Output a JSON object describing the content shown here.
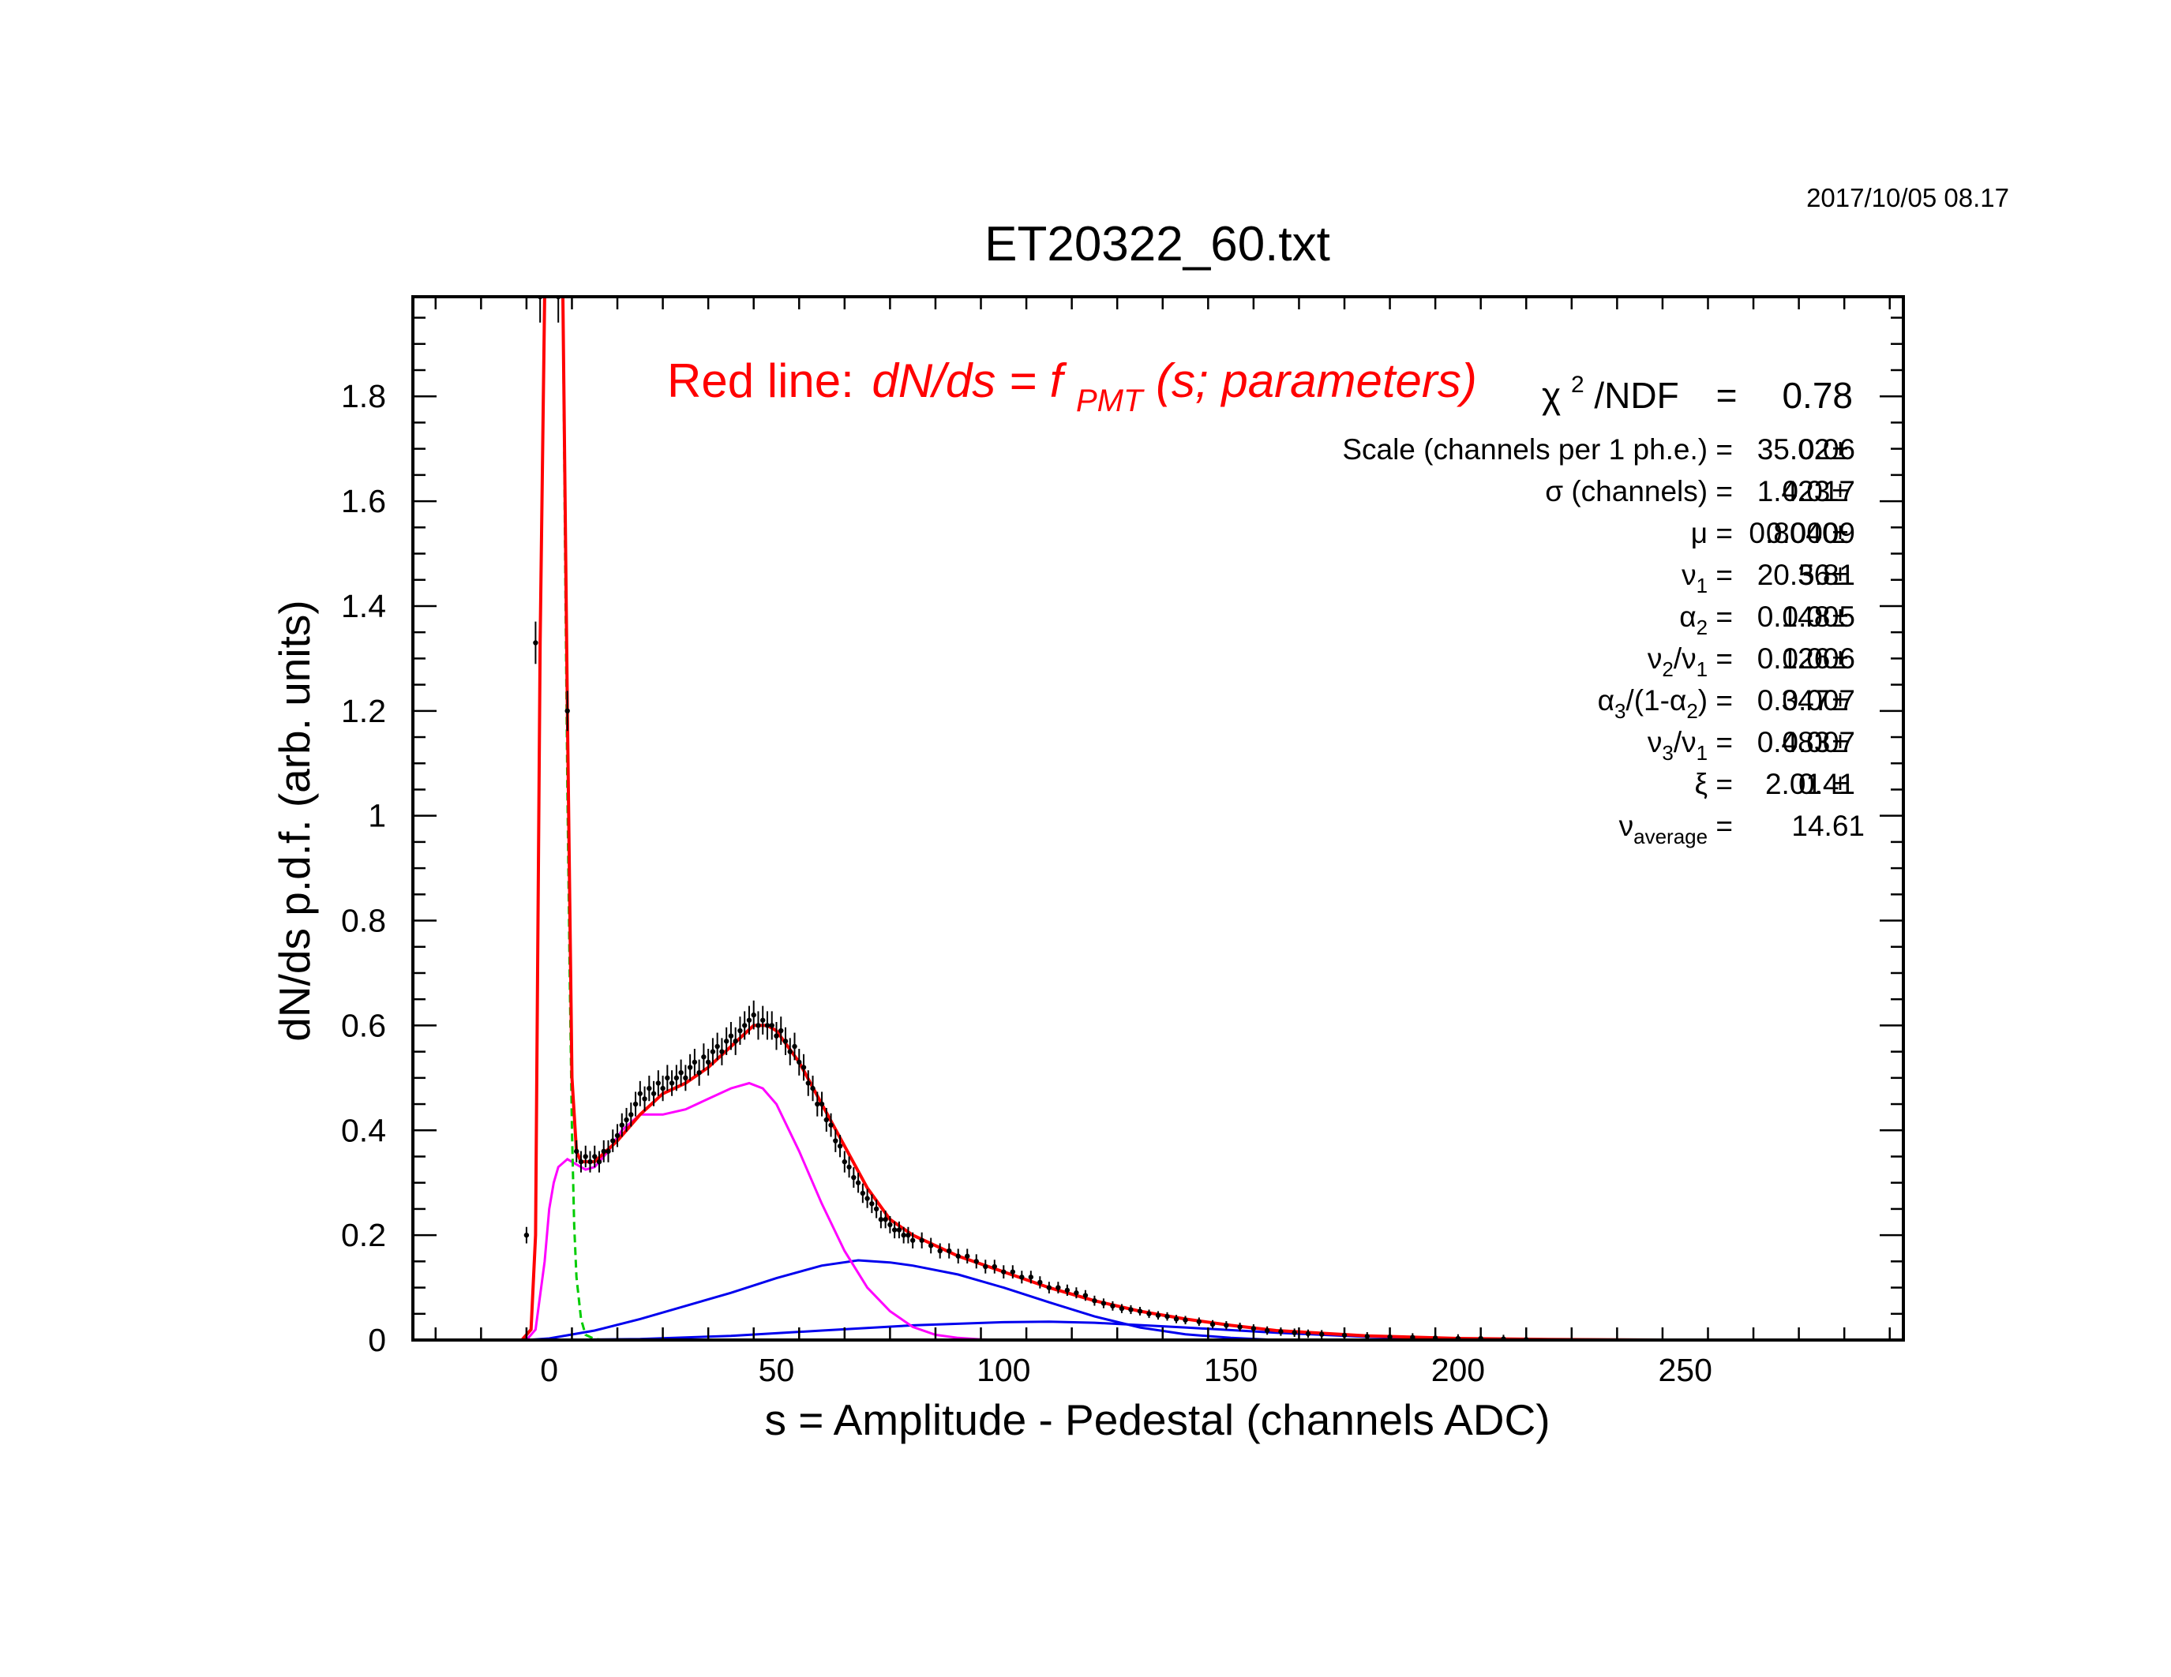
{
  "window": {
    "title": "ET20322_60.txt",
    "datestamp": "2017/10/05   08.17"
  },
  "colors": {
    "fit": "#ff0000",
    "pedestal": "#00cc00",
    "single_pe": "#ff00ff",
    "multi_pe": "#0000ee",
    "data": "#000000"
  },
  "fit_label": {
    "prefix": "Red line:",
    "formula_a": "dN/ds = f",
    "formula_sub": "PMT",
    "formula_b": "(s; parameters)"
  },
  "chi2": {
    "symbol": "χ",
    "sup": "2",
    "label": "/NDF",
    "eq": "=",
    "value": "0.78"
  },
  "params": [
    {
      "pre": "Scale (channels per 1 ph.e.) =",
      "sub": "",
      "post": "",
      "value": "35.02",
      "pm": "±",
      "err": "0.06"
    },
    {
      "pre": "σ (channels) =",
      "sub": "",
      "post": "",
      "value": "1.423",
      "pm": "±",
      "err": "0.017"
    },
    {
      "pre": "μ  =",
      "sub": "",
      "post": "",
      "value": "0.8040",
      "pm": "±",
      "err": "0.0009"
    },
    {
      "pre": "ν",
      "sub": "1",
      "post": " =",
      "value": "20.36",
      "pm": "±",
      "err": "5.81"
    },
    {
      "pre": "α",
      "sub": "2",
      "post": " =",
      "value": "0.148",
      "pm": "±",
      "err": "0.005"
    },
    {
      "pre": "ν",
      "sub": "2",
      "post": "/ν",
      "sub2": "1",
      "post2": " =",
      "value": "0.126",
      "pm": "±",
      "err": "0.006"
    },
    {
      "pre": "α",
      "sub": "3",
      "post": "/(1-α",
      "sub2": "2",
      "post2": ") =",
      "value": "0.347",
      "pm": "±",
      "err": "0.007"
    },
    {
      "pre": "ν",
      "sub": "3",
      "post": "/ν",
      "sub2": "1",
      "post2": " =",
      "value": "0.483",
      "pm": "±",
      "err": "0.007"
    },
    {
      "pre": "ξ  =",
      "sub": "",
      "post": "",
      "value": "2.01",
      "pm": "±",
      "err": "0.41"
    },
    {
      "pre": "ν",
      "sub": "average",
      "post": "  =",
      "value": "14.61",
      "pm": "",
      "err": ""
    }
  ],
  "chart_data": {
    "type": "scatter",
    "title": "ET20322_60.txt",
    "xlabel": "s = Amplitude - Pedestal (channels ADC)",
    "ylabel": "dN/ds p.d.f. (arb. units)",
    "xlim": [
      -30,
      298
    ],
    "ylim": [
      0,
      1.99
    ],
    "xticks": [
      0,
      50,
      100,
      150,
      200,
      250
    ],
    "xtick_labels": [
      "0",
      "50",
      "100",
      "150",
      "200",
      "250"
    ],
    "yticks": [
      0,
      0.2,
      0.4,
      0.6,
      0.8,
      1,
      1.2,
      1.4,
      1.6,
      1.8
    ],
    "ytick_labels": [
      "0",
      "0.2",
      "0.4",
      "0.6",
      "0.8",
      "1",
      "1.2",
      "1.4",
      "1.6",
      "1.8"
    ],
    "grid": false,
    "series": [
      {
        "role": "fit",
        "x": [
          -6,
          -4,
          -3,
          -2,
          -1,
          3,
          4,
          5,
          6,
          7,
          10,
          15,
          20,
          25,
          30,
          35,
          40,
          45,
          48,
          50,
          55,
          60,
          65,
          70,
          75,
          80,
          90,
          100,
          110,
          120,
          130,
          140,
          150,
          160,
          180,
          200,
          220,
          245
        ],
        "y": [
          0,
          0.02,
          0.2,
          1.33,
          1.99,
          1.99,
          1.2,
          0.5,
          0.36,
          0.34,
          0.34,
          0.38,
          0.43,
          0.47,
          0.49,
          0.52,
          0.56,
          0.6,
          0.6,
          0.59,
          0.53,
          0.45,
          0.37,
          0.29,
          0.23,
          0.2,
          0.16,
          0.13,
          0.1,
          0.075,
          0.055,
          0.04,
          0.028,
          0.018,
          0.008,
          0.003,
          0.001,
          0
        ]
      },
      {
        "role": "pedestal",
        "x": [
          1,
          2,
          3,
          3.5,
          4,
          4.5,
          5,
          5.5,
          6,
          7,
          8,
          10,
          12
        ],
        "y": [
          1.99,
          1.99,
          1.99,
          1.5,
          1.05,
          0.7,
          0.4,
          0.22,
          0.12,
          0.04,
          0.01,
          0.002,
          0
        ]
      },
      {
        "role": "single_pe",
        "x": [
          -5,
          -3,
          -1,
          0,
          1,
          2,
          4,
          6,
          8,
          10,
          13,
          16,
          20,
          25,
          30,
          35,
          40,
          44,
          47,
          50,
          55,
          60,
          65,
          70,
          75,
          80,
          85,
          90,
          95,
          100
        ],
        "y": [
          0,
          0.02,
          0.15,
          0.25,
          0.3,
          0.33,
          0.345,
          0.335,
          0.325,
          0.33,
          0.36,
          0.4,
          0.43,
          0.43,
          0.44,
          0.46,
          0.48,
          0.49,
          0.48,
          0.45,
          0.36,
          0.26,
          0.17,
          0.1,
          0.055,
          0.025,
          0.01,
          0.004,
          0.001,
          0
        ]
      },
      {
        "role": "multi_pe_2",
        "x": [
          -5,
          0,
          10,
          20,
          30,
          40,
          50,
          60,
          68,
          75,
          80,
          90,
          100,
          110,
          120,
          130,
          140,
          150,
          160
        ],
        "y": [
          0,
          0.003,
          0.018,
          0.04,
          0.065,
          0.09,
          0.118,
          0.142,
          0.152,
          0.148,
          0.142,
          0.125,
          0.1,
          0.072,
          0.045,
          0.024,
          0.011,
          0.004,
          0
        ]
      },
      {
        "role": "multi_pe_3",
        "x": [
          0,
          20,
          40,
          60,
          80,
          100,
          110,
          120,
          140,
          160,
          180,
          200,
          220
        ],
        "y": [
          0,
          0.002,
          0.008,
          0.018,
          0.028,
          0.034,
          0.035,
          0.033,
          0.024,
          0.014,
          0.006,
          0.002,
          0
        ]
      },
      {
        "role": "data_points",
        "x": [
          -5,
          -3,
          -2,
          2,
          4,
          6,
          7,
          8,
          9,
          10,
          11,
          12,
          13,
          14,
          15,
          16,
          17,
          18,
          19,
          20,
          21,
          22,
          23,
          24,
          25,
          26,
          27,
          28,
          29,
          30,
          31,
          32,
          33,
          34,
          35,
          36,
          37,
          38,
          39,
          40,
          41,
          42,
          43,
          44,
          45,
          46,
          47,
          48,
          49,
          50,
          51,
          52,
          53,
          54,
          55,
          56,
          57,
          58,
          59,
          60,
          61,
          62,
          63,
          64,
          65,
          66,
          67,
          68,
          69,
          70,
          71,
          72,
          73,
          74,
          75,
          76,
          77,
          78,
          79,
          80,
          82,
          84,
          86,
          88,
          90,
          92,
          94,
          96,
          98,
          100,
          102,
          104,
          106,
          108,
          110,
          112,
          114,
          116,
          118,
          120,
          122,
          124,
          126,
          128,
          130,
          132,
          134,
          136,
          138,
          140,
          143,
          146,
          149,
          152,
          155,
          158,
          161,
          164,
          167,
          170,
          175,
          180,
          185,
          190,
          195,
          200,
          205,
          210,
          215
        ],
        "y": [
          0.2,
          1.33,
          1.99,
          1.99,
          1.2,
          0.36,
          0.34,
          0.35,
          0.34,
          0.35,
          0.34,
          0.36,
          0.36,
          0.38,
          0.39,
          0.41,
          0.42,
          0.43,
          0.45,
          0.47,
          0.46,
          0.48,
          0.47,
          0.49,
          0.48,
          0.5,
          0.49,
          0.5,
          0.51,
          0.5,
          0.52,
          0.53,
          0.51,
          0.54,
          0.53,
          0.55,
          0.56,
          0.55,
          0.57,
          0.58,
          0.57,
          0.59,
          0.6,
          0.61,
          0.62,
          0.6,
          0.61,
          0.6,
          0.6,
          0.58,
          0.59,
          0.57,
          0.55,
          0.56,
          0.53,
          0.52,
          0.49,
          0.48,
          0.45,
          0.45,
          0.42,
          0.41,
          0.38,
          0.37,
          0.34,
          0.33,
          0.31,
          0.3,
          0.28,
          0.27,
          0.26,
          0.25,
          0.23,
          0.23,
          0.22,
          0.21,
          0.21,
          0.2,
          0.2,
          0.19,
          0.19,
          0.18,
          0.17,
          0.17,
          0.16,
          0.16,
          0.15,
          0.14,
          0.14,
          0.13,
          0.13,
          0.12,
          0.12,
          0.11,
          0.1,
          0.1,
          0.095,
          0.09,
          0.085,
          0.075,
          0.07,
          0.065,
          0.06,
          0.058,
          0.055,
          0.05,
          0.047,
          0.045,
          0.04,
          0.038,
          0.035,
          0.03,
          0.028,
          0.025,
          0.022,
          0.018,
          0.016,
          0.014,
          0.012,
          0.011,
          0.009,
          0.007,
          0.006,
          0.005,
          0.004,
          0.003,
          0.003,
          0.002,
          0.001
        ]
      }
    ]
  }
}
